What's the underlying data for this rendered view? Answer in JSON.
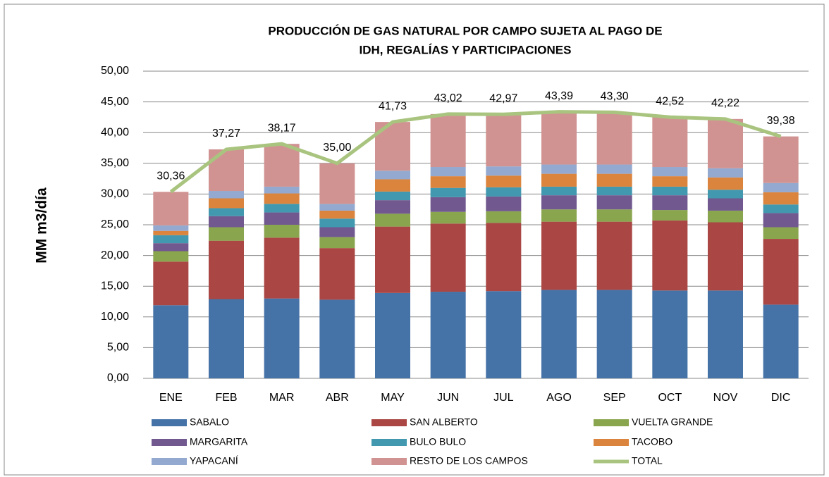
{
  "chart_data": {
    "type": "bar",
    "stacked": true,
    "title": [
      "PRODUCCIÓN DE GAS NATURAL POR CAMPO SUJETA  AL PAGO DE",
      "IDH, REGALÍAS Y PARTICIPACIONES"
    ],
    "y_label": "MM m3/día",
    "categories": [
      "ENE",
      "FEB",
      "MAR",
      "ABR",
      "MAY",
      "JUN",
      "JUL",
      "AGO",
      "SEP",
      "OCT",
      "NOV",
      "DIC"
    ],
    "series": [
      {
        "name": "SABALO",
        "color": "#4572a7",
        "values": [
          11.9,
          12.9,
          13.0,
          12.8,
          13.9,
          14.1,
          14.2,
          14.4,
          14.4,
          14.3,
          14.3,
          12.0
        ]
      },
      {
        "name": "SAN ALBERTO",
        "color": "#aa4643",
        "values": [
          7.1,
          9.5,
          9.9,
          8.4,
          10.8,
          11.1,
          11.1,
          11.1,
          11.1,
          11.4,
          11.1,
          10.7
        ]
      },
      {
        "name": "VUELTA GRANDE",
        "color": "#89a54e",
        "values": [
          1.7,
          2.2,
          2.1,
          1.8,
          2.1,
          1.9,
          1.9,
          2.0,
          2.0,
          1.7,
          1.9,
          1.9
        ]
      },
      {
        "name": "MARGARITA",
        "color": "#71588f",
        "values": [
          1.3,
          1.8,
          2.0,
          1.6,
          2.2,
          2.4,
          2.4,
          2.3,
          2.3,
          2.4,
          2.0,
          2.3
        ]
      },
      {
        "name": "BULO BULO",
        "color": "#4198af",
        "values": [
          1.3,
          1.3,
          1.4,
          1.4,
          1.4,
          1.5,
          1.5,
          1.4,
          1.4,
          1.4,
          1.4,
          1.4
        ]
      },
      {
        "name": "TACOBO",
        "color": "#db843d",
        "values": [
          0.7,
          1.6,
          1.7,
          1.3,
          2.0,
          1.9,
          1.9,
          2.1,
          2.1,
          1.7,
          2.0,
          2.0
        ]
      },
      {
        "name": "YAPACANÍ",
        "color": "#93a9cf",
        "values": [
          0.9,
          1.2,
          1.1,
          1.1,
          1.4,
          1.5,
          1.5,
          1.5,
          1.5,
          1.5,
          1.5,
          1.5
        ]
      },
      {
        "name": "RESTO DE LOS CAMPOS",
        "color": "#d19392",
        "values": [
          5.46,
          6.77,
          6.97,
          6.6,
          7.93,
          8.62,
          8.47,
          8.59,
          8.5,
          8.12,
          8.02,
          7.58
        ]
      },
      {
        "name": "TOTAL",
        "type": "line",
        "color": "#a9c47f",
        "values": [
          30.36,
          37.27,
          38.17,
          35.0,
          41.73,
          43.02,
          42.97,
          43.39,
          43.3,
          42.52,
          42.22,
          39.38
        ],
        "value_labels": [
          "30,36",
          "37,27",
          "38,17",
          "35,00",
          "41,73",
          "43,02",
          "42,97",
          "43,39",
          "43,30",
          "42,52",
          "42,22",
          "39,38"
        ]
      }
    ],
    "ylim": [
      0,
      50
    ],
    "yticks": [
      {
        "value": 0,
        "label": "0,00"
      },
      {
        "value": 5,
        "label": "5,00"
      },
      {
        "value": 10,
        "label": "10,00"
      },
      {
        "value": 15,
        "label": "15,00"
      },
      {
        "value": 20,
        "label": "20,00"
      },
      {
        "value": 25,
        "label": "25,00"
      },
      {
        "value": 30,
        "label": "30,00"
      },
      {
        "value": 35,
        "label": "35,00"
      },
      {
        "value": 40,
        "label": "40,00"
      },
      {
        "value": 45,
        "label": "45,00"
      },
      {
        "value": 50,
        "label": "50,00"
      }
    ],
    "grid": true
  }
}
